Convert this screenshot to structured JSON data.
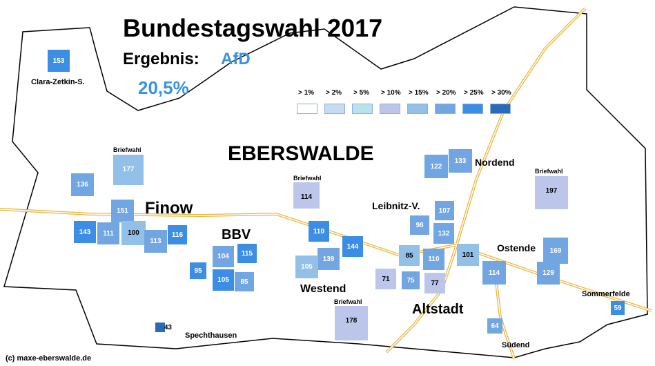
{
  "header": {
    "title": "Bundestagswahl 2017",
    "result_label": "Ergebnis:",
    "party": "AfD",
    "percent": "20,5%"
  },
  "legend": [
    {
      "label": "> 1%",
      "color": "#ffffff"
    },
    {
      "label": "> 2%",
      "color": "#c6dcf3"
    },
    {
      "label": "> 5%",
      "color": "#b8e3ee"
    },
    {
      "label": "> 10%",
      "color": "#bcc6ea"
    },
    {
      "label": "> 15%",
      "color": "#92c0e8"
    },
    {
      "label": "> 20%",
      "color": "#72a6e2"
    },
    {
      "label": "> 25%",
      "color": "#3b8ee3"
    },
    {
      "label": "> 30%",
      "color": "#2a6ab8"
    }
  ],
  "places": {
    "city": "EBERSWALDE",
    "finow": "Finow",
    "bbv": "BBV",
    "westend": "Westend",
    "altstadt": "Altstadt",
    "nordend": "Nordend",
    "leibnitz": "Leibnitz-V.",
    "ostende": "Ostende",
    "sommerfelde": "Sommerfelde",
    "suedend": "Südend",
    "spechthausen": "Spechthausen",
    "clara": "Clara-Zetkin-S."
  },
  "briefwahl_label": "Briefwahl",
  "districts": [
    {
      "id": "153",
      "color": "#3b8ee3"
    },
    {
      "id": "177",
      "color": "#92c0e8"
    },
    {
      "id": "136",
      "color": "#72a6e2"
    },
    {
      "id": "151",
      "color": "#72a6e2"
    },
    {
      "id": "143",
      "color": "#3b8ee3"
    },
    {
      "id": "111",
      "color": "#72a6e2"
    },
    {
      "id": "100",
      "color": "#92c0e8"
    },
    {
      "id": "113",
      "color": "#72a6e2"
    },
    {
      "id": "116",
      "color": "#3b8ee3"
    },
    {
      "id": "95",
      "color": "#3b8ee3"
    },
    {
      "id": "104",
      "color": "#72a6e2"
    },
    {
      "id": "115",
      "color": "#3b8ee3"
    },
    {
      "id": "105",
      "color": "#3b8ee3"
    },
    {
      "id": "85",
      "color": "#72a6e2"
    },
    {
      "id": "43",
      "color": "#2a6ab8"
    },
    {
      "id": "114",
      "color": "#bcc6ea"
    },
    {
      "id": "110",
      "color": "#3b8ee3"
    },
    {
      "id": "139",
      "color": "#72a6e2"
    },
    {
      "id": "144",
      "color": "#3b8ee3"
    },
    {
      "id": "105",
      "color": "#92c0e8"
    },
    {
      "id": "178",
      "color": "#bcc6ea"
    },
    {
      "id": "122",
      "color": "#72a6e2"
    },
    {
      "id": "133",
      "color": "#72a6e2"
    },
    {
      "id": "107",
      "color": "#72a6e2"
    },
    {
      "id": "98",
      "color": "#72a6e2"
    },
    {
      "id": "132",
      "color": "#72a6e2"
    },
    {
      "id": "85",
      "color": "#92c0e8"
    },
    {
      "id": "110",
      "color": "#72a6e2"
    },
    {
      "id": "101",
      "color": "#92c0e8"
    },
    {
      "id": "71",
      "color": "#bcc6ea"
    },
    {
      "id": "75",
      "color": "#72a6e2"
    },
    {
      "id": "77",
      "color": "#bcc6ea"
    },
    {
      "id": "114",
      "color": "#72a6e2"
    },
    {
      "id": "197",
      "color": "#bcc6ea"
    },
    {
      "id": "169",
      "color": "#72a6e2"
    },
    {
      "id": "129",
      "color": "#72a6e2"
    },
    {
      "id": "64",
      "color": "#72a6e2"
    },
    {
      "id": "59",
      "color": "#3b8ee3"
    }
  ],
  "copyright": "(c) maxe-eberswalde.de"
}
